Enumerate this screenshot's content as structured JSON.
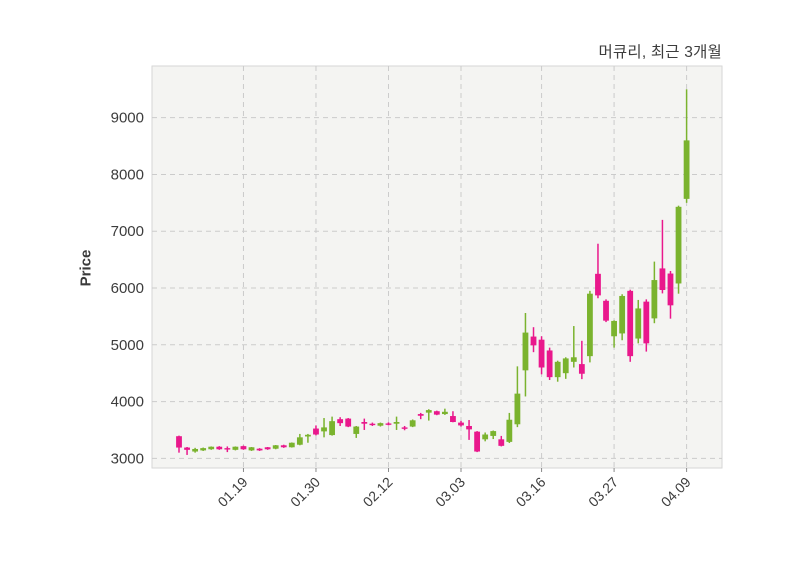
{
  "title": "머큐리, 최근 3개월",
  "chart_data": {
    "type": "candlestick",
    "title": "머큐리, 최근 3개월",
    "xlabel": "",
    "ylabel": "Price",
    "y_ticks": [
      3000,
      4000,
      5000,
      6000,
      7000,
      8000,
      9000
    ],
    "y_range": [
      2830,
      9910
    ],
    "x_tick_labels": [
      "01.19",
      "01.30",
      "02.12",
      "03.03",
      "03.16",
      "03.27",
      "04.09"
    ],
    "x_tick_indices": [
      8,
      17,
      26,
      35,
      45,
      54,
      63
    ],
    "grid": "dashed-both-axes",
    "legend_position": "none",
    "up_color": "#7ab32e",
    "down_color": "#e9188c",
    "candles_ohlc": [
      [
        3390,
        3400,
        3100,
        3190
      ],
      [
        3190,
        3200,
        3060,
        3150
      ],
      [
        3120,
        3185,
        3100,
        3165
      ],
      [
        3140,
        3190,
        3130,
        3180
      ],
      [
        3160,
        3210,
        3150,
        3205
      ],
      [
        3205,
        3215,
        3150,
        3160
      ],
      [
        3180,
        3210,
        3110,
        3170
      ],
      [
        3150,
        3210,
        3140,
        3205
      ],
      [
        3215,
        3225,
        3150,
        3160
      ],
      [
        3140,
        3200,
        3130,
        3195
      ],
      [
        3170,
        3180,
        3130,
        3140
      ],
      [
        3195,
        3200,
        3150,
        3160
      ],
      [
        3170,
        3235,
        3160,
        3230
      ],
      [
        3230,
        3240,
        3185,
        3195
      ],
      [
        3195,
        3280,
        3190,
        3275
      ],
      [
        3240,
        3430,
        3230,
        3370
      ],
      [
        3385,
        3430,
        3275,
        3415
      ],
      [
        3525,
        3580,
        3405,
        3420
      ],
      [
        3475,
        3710,
        3370,
        3545
      ],
      [
        3410,
        3735,
        3400,
        3655
      ],
      [
        3690,
        3725,
        3570,
        3620
      ],
      [
        3700,
        3710,
        3550,
        3560
      ],
      [
        3430,
        3570,
        3360,
        3560
      ],
      [
        3640,
        3700,
        3500,
        3610
      ],
      [
        3610,
        3630,
        3570,
        3585
      ],
      [
        3575,
        3630,
        3560,
        3620
      ],
      [
        3615,
        3635,
        3580,
        3600
      ],
      [
        3610,
        3735,
        3500,
        3640
      ],
      [
        3545,
        3570,
        3495,
        3520
      ],
      [
        3560,
        3685,
        3550,
        3670
      ],
      [
        3780,
        3800,
        3690,
        3750
      ],
      [
        3805,
        3865,
        3665,
        3850
      ],
      [
        3830,
        3840,
        3760,
        3770
      ],
      [
        3780,
        3875,
        3765,
        3820
      ],
      [
        3745,
        3830,
        3635,
        3640
      ],
      [
        3630,
        3660,
        3560,
        3580
      ],
      [
        3570,
        3675,
        3325,
        3510
      ],
      [
        3470,
        3480,
        3110,
        3120
      ],
      [
        3335,
        3455,
        3300,
        3420
      ],
      [
        3395,
        3490,
        3340,
        3480
      ],
      [
        3335,
        3395,
        3210,
        3220
      ],
      [
        3290,
        3800,
        3270,
        3680
      ],
      [
        3600,
        4620,
        3550,
        4140
      ],
      [
        4550,
        5560,
        4090,
        5215
      ],
      [
        5145,
        5310,
        4870,
        4990
      ],
      [
        5090,
        5150,
        4480,
        4600
      ],
      [
        4900,
        4950,
        4380,
        4430
      ],
      [
        4430,
        4720,
        4350,
        4700
      ],
      [
        4500,
        4780,
        4400,
        4760
      ],
      [
        4700,
        5330,
        4600,
        4780
      ],
      [
        4660,
        5070,
        4395,
        4490
      ],
      [
        4800,
        5950,
        4690,
        5900
      ],
      [
        6250,
        6780,
        5820,
        5870
      ],
      [
        5775,
        5800,
        5400,
        5425
      ],
      [
        5150,
        5430,
        4950,
        5420
      ],
      [
        5200,
        5890,
        5080,
        5860
      ],
      [
        5950,
        5970,
        4700,
        4800
      ],
      [
        5110,
        5790,
        5025,
        5640
      ],
      [
        5760,
        5800,
        4880,
        5025
      ],
      [
        5465,
        6465,
        5380,
        6140
      ],
      [
        6345,
        7200,
        5905,
        5965
      ],
      [
        6255,
        6300,
        5460,
        5695
      ],
      [
        6080,
        7450,
        5900,
        7430
      ],
      [
        7570,
        9500,
        7500,
        8600
      ]
    ]
  },
  "colors": {
    "plot_background": "#f4f4f2",
    "plot_border": "#d6d6d6",
    "gridline": "#cbcbcb",
    "tick_text": "#3c3c3c",
    "title_text": "#3d3d3d"
  }
}
